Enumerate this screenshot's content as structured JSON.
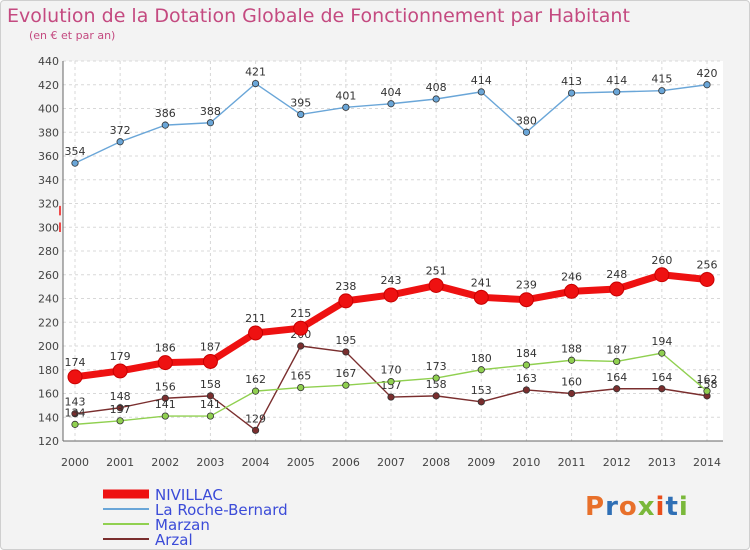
{
  "title": "Evolution de la Dotation Globale de Fonctionnement par Habitant",
  "subtitle": "(en € et par an)",
  "logo": {
    "text": "Proxiti",
    "colors": [
      "#e8702a",
      "#2f6fb5",
      "#e8702a",
      "#7ab83a",
      "#e94e1b",
      "#2f6fb5",
      "#7ab83a"
    ]
  },
  "chart_data": {
    "type": "line",
    "title": "Evolution de la Dotation Globale de Fonctionnement par Habitant",
    "subtitle": "(en € et par an)",
    "x": [
      "2000",
      "2001",
      "2002",
      "2003",
      "2004",
      "2005",
      "2006",
      "2007",
      "2008",
      "2009",
      "2010",
      "2011",
      "2012",
      "2013",
      "2014"
    ],
    "ylim": [
      120,
      440
    ],
    "yticks": [
      120,
      140,
      160,
      180,
      200,
      220,
      240,
      260,
      280,
      300,
      320,
      340,
      360,
      380,
      400,
      420,
      440
    ],
    "grid": true,
    "legend_position": "bottom-left",
    "series": [
      {
        "name": "NIVILLAC",
        "color": "#ee1111",
        "values": [
          174,
          179,
          186,
          187,
          211,
          215,
          238,
          243,
          251,
          241,
          239,
          246,
          248,
          260,
          256
        ]
      },
      {
        "name": "La Roche-Bernard",
        "color": "#6aa6d8",
        "values": [
          354,
          372,
          386,
          388,
          421,
          395,
          401,
          404,
          408,
          414,
          380,
          413,
          414,
          415,
          420
        ]
      },
      {
        "name": "Marzan",
        "color": "#90d050",
        "values": [
          134,
          137,
          141,
          141,
          162,
          165,
          167,
          170,
          173,
          180,
          184,
          188,
          187,
          194,
          162
        ]
      },
      {
        "name": "Arzal",
        "color": "#7a2e2e",
        "values": [
          143,
          148,
          156,
          158,
          129,
          200,
          195,
          157,
          158,
          153,
          163,
          160,
          164,
          164,
          158
        ]
      }
    ]
  }
}
